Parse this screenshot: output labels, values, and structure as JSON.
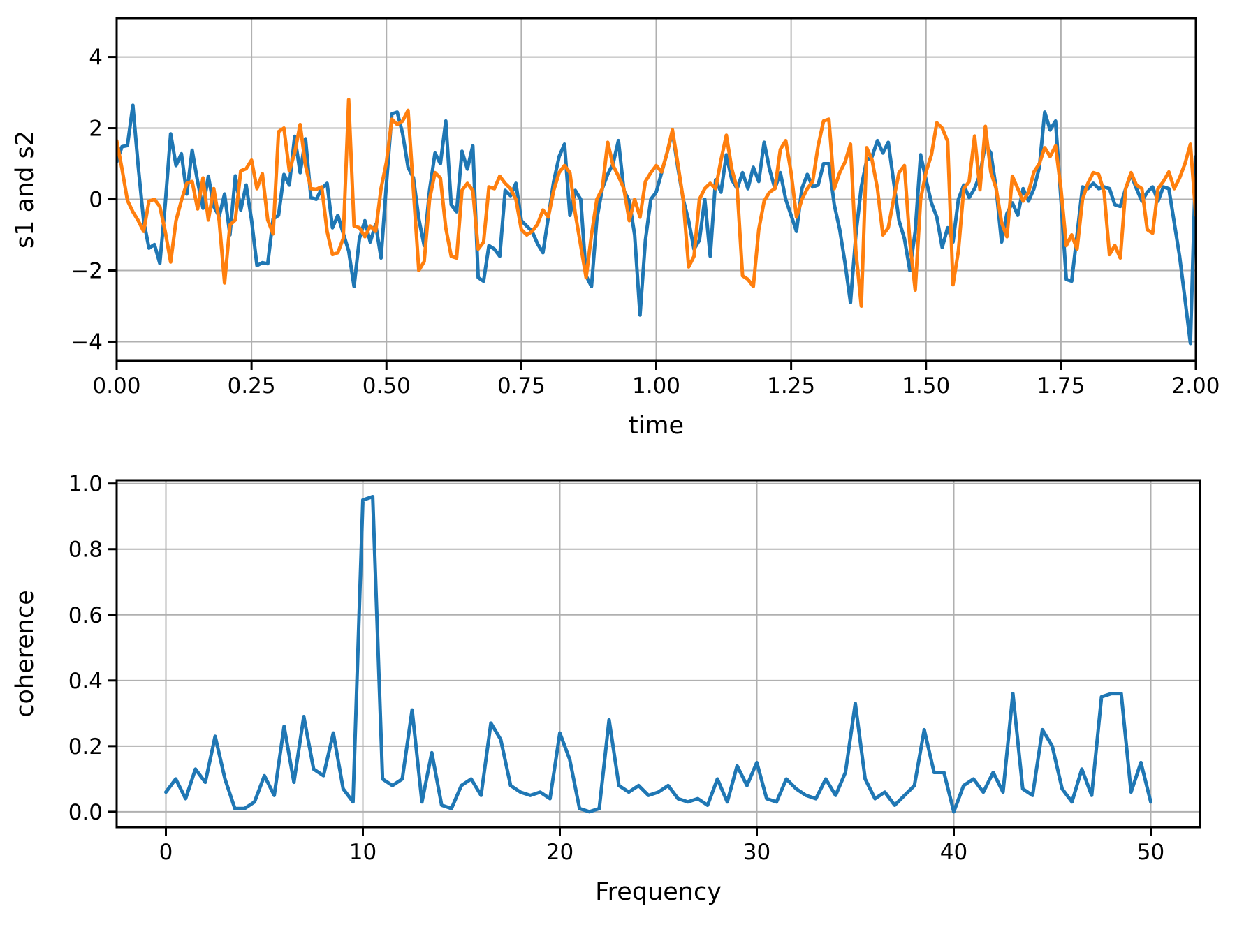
{
  "colors": {
    "s1": "#1f77b4",
    "s2": "#ff7f0e",
    "grid": "#b0b0b0",
    "spine": "#000000",
    "text": "#000000",
    "background": "#ffffff"
  },
  "chart_data": [
    {
      "type": "line",
      "title": "",
      "xlabel": "time",
      "ylabel": "s1 and s2",
      "xlim": [
        0,
        2
      ],
      "ylim": [
        -4.54,
        5.09
      ],
      "grid": true,
      "legend": "none",
      "xticks": {
        "values": [
          0,
          0.25,
          0.5,
          0.75,
          1.0,
          1.25,
          1.5,
          1.75,
          2.0
        ],
        "labels": [
          "0.00",
          "0.25",
          "0.50",
          "0.75",
          "1.00",
          "1.25",
          "1.50",
          "1.75",
          "2.00"
        ]
      },
      "yticks": {
        "values": [
          -4,
          -2,
          0,
          2,
          4
        ],
        "labels": [
          "−4",
          "−2",
          "0",
          "2",
          "4"
        ]
      },
      "x_start": 0,
      "x_step": 0.01,
      "series": [
        {
          "name": "s1",
          "color_key": "s1",
          "values": [
            1.05,
            1.48,
            1.51,
            2.64,
            0.92,
            -0.6,
            -1.37,
            -1.27,
            -1.8,
            -0.15,
            1.84,
            0.95,
            1.28,
            0.15,
            1.38,
            0.5,
            -0.25,
            0.65,
            -0.2,
            -0.48,
            0.15,
            -1.0,
            0.66,
            -0.3,
            0.4,
            -0.58,
            -1.86,
            -1.78,
            -1.81,
            -0.55,
            -0.45,
            0.7,
            0.4,
            1.77,
            0.75,
            1.7,
            0.05,
            0.0,
            0.3,
            0.45,
            -0.8,
            -0.45,
            -0.95,
            -1.45,
            -2.45,
            -1.1,
            -0.6,
            -1.2,
            -0.7,
            -1.65,
            0.45,
            2.4,
            2.45,
            1.85,
            0.9,
            0.6,
            -0.55,
            -1.3,
            0.25,
            1.3,
            1.0,
            2.2,
            -0.15,
            -0.35,
            1.35,
            0.85,
            1.5,
            -2.2,
            -2.3,
            -1.3,
            -1.4,
            -1.6,
            0.25,
            0.1,
            0.45,
            -0.6,
            -0.75,
            -0.9,
            -1.25,
            -1.5,
            -0.5,
            0.5,
            1.2,
            1.55,
            -0.45,
            0.25,
            0.0,
            -2.15,
            -2.45,
            -0.55,
            0.3,
            0.7,
            1.0,
            1.65,
            0.25,
            -0.05,
            -1.0,
            -3.25,
            -1.15,
            0.0,
            0.2,
            0.75,
            1.3,
            1.9,
            0.9,
            0.0,
            -0.6,
            -1.4,
            -1.15,
            0.0,
            -1.6,
            0.55,
            0.2,
            1.25,
            0.55,
            0.3,
            0.75,
            0.3,
            0.9,
            0.5,
            1.6,
            0.85,
            0.3,
            0.75,
            0.0,
            -0.45,
            -0.9,
            0.3,
            0.7,
            0.35,
            0.4,
            1.0,
            1.0,
            -0.15,
            -0.85,
            -1.8,
            -2.9,
            -1.0,
            0.35,
            1.1,
            1.2,
            1.65,
            1.3,
            1.6,
            0.5,
            -0.6,
            -1.1,
            -2.0,
            -0.9,
            1.25,
            0.55,
            -0.1,
            -0.5,
            -1.35,
            -0.8,
            -1.2,
            0.0,
            0.4,
            0.05,
            0.3,
            0.7,
            1.55,
            1.3,
            0.3,
            -1.2,
            -0.4,
            -0.1,
            -0.45,
            0.3,
            -0.05,
            0.3,
            0.9,
            2.45,
            1.95,
            2.2,
            0.0,
            -2.25,
            -2.3,
            -1.0,
            0.35,
            0.3,
            0.45,
            0.3,
            0.35,
            0.3,
            -0.15,
            -0.2,
            0.3,
            0.7,
            0.3,
            -0.05,
            0.2,
            0.35,
            -0.05,
            0.35,
            0.3,
            -0.65,
            -1.6,
            -2.8,
            -4.05,
            1.2
          ]
        },
        {
          "name": "s2",
          "color_key": "s2",
          "values": [
            1.65,
            0.85,
            -0.03,
            -0.35,
            -0.6,
            -0.9,
            -0.05,
            0.0,
            -0.2,
            -0.9,
            -1.76,
            -0.6,
            -0.03,
            0.45,
            0.5,
            -0.27,
            0.6,
            -0.58,
            0.3,
            -0.6,
            -2.35,
            -0.72,
            -0.58,
            0.8,
            0.86,
            1.1,
            0.3,
            0.72,
            -0.58,
            -0.97,
            1.9,
            2.0,
            0.8,
            1.3,
            2.1,
            0.95,
            0.3,
            0.28,
            0.35,
            -0.9,
            -1.55,
            -1.5,
            -1.1,
            2.8,
            -0.75,
            -0.8,
            -1.05,
            -0.75,
            -0.9,
            0.3,
            1.05,
            2.25,
            2.1,
            2.2,
            2.5,
            0.25,
            -2.0,
            -1.75,
            0.0,
            0.75,
            0.6,
            -0.8,
            -1.6,
            -1.65,
            0.25,
            0.45,
            0.25,
            -1.4,
            -1.2,
            0.35,
            0.3,
            0.65,
            0.45,
            0.3,
            0.0,
            -0.85,
            -1.0,
            -0.9,
            -0.7,
            -0.3,
            -0.5,
            0.25,
            0.75,
            0.95,
            0.75,
            -0.4,
            -1.3,
            -2.2,
            -1.0,
            0.0,
            0.3,
            1.6,
            0.95,
            0.65,
            0.3,
            -0.6,
            0.0,
            -0.5,
            0.5,
            0.75,
            0.95,
            0.77,
            1.3,
            1.95,
            1.0,
            0.0,
            -1.9,
            -1.6,
            0.0,
            0.3,
            0.45,
            0.3,
            1.1,
            1.8,
            0.85,
            0.3,
            -2.15,
            -2.25,
            -2.45,
            -0.85,
            -0.05,
            0.2,
            0.3,
            1.4,
            1.65,
            0.75,
            -0.5,
            0.0,
            0.3,
            0.5,
            1.5,
            2.2,
            2.25,
            0.3,
            0.75,
            1.05,
            1.55,
            -1.45,
            -3.0,
            1.45,
            1.1,
            0.3,
            -1.0,
            -0.8,
            0.0,
            0.75,
            0.95,
            -1.2,
            -2.55,
            0.0,
            0.77,
            1.25,
            2.15,
            2.0,
            1.63,
            -2.4,
            -1.45,
            0.3,
            0.5,
            1.78,
            0.27,
            2.05,
            0.77,
            0.3,
            -0.65,
            -1.05,
            0.65,
            0.3,
            -0.05,
            0.2,
            0.77,
            1.0,
            1.45,
            1.2,
            1.5,
            0.3,
            -1.3,
            -1.0,
            -1.4,
            0.0,
            0.45,
            0.75,
            0.7,
            0.2,
            -1.55,
            -1.3,
            -1.65,
            0.3,
            0.75,
            0.4,
            0.3,
            -0.85,
            -0.95,
            0.3,
            0.5,
            0.77,
            0.3,
            0.6,
            1.0,
            1.55,
            -0.45
          ]
        }
      ]
    },
    {
      "type": "line",
      "title": "",
      "xlabel": "Frequency",
      "ylabel": "coherence",
      "xlim": [
        -2.5,
        52.5
      ],
      "ylim": [
        -0.047,
        1.01
      ],
      "grid": true,
      "legend": "none",
      "xticks": {
        "values": [
          0,
          10,
          20,
          30,
          40,
          50
        ],
        "labels": [
          "0",
          "10",
          "20",
          "30",
          "40",
          "50"
        ]
      },
      "yticks": {
        "values": [
          0.0,
          0.2,
          0.4,
          0.6,
          0.8,
          1.0
        ],
        "labels": [
          "0.0",
          "0.2",
          "0.4",
          "0.6",
          "0.8",
          "1.0"
        ]
      },
      "x_start": 0,
      "x_step": 0.5,
      "series": [
        {
          "name": "coherence",
          "color_key": "s1",
          "values": [
            0.06,
            0.1,
            0.04,
            0.13,
            0.09,
            0.23,
            0.1,
            0.01,
            0.01,
            0.03,
            0.11,
            0.05,
            0.26,
            0.09,
            0.29,
            0.13,
            0.11,
            0.24,
            0.07,
            0.03,
            0.95,
            0.96,
            0.1,
            0.08,
            0.1,
            0.31,
            0.03,
            0.18,
            0.02,
            0.01,
            0.08,
            0.1,
            0.05,
            0.27,
            0.22,
            0.08,
            0.06,
            0.05,
            0.06,
            0.04,
            0.24,
            0.16,
            0.01,
            0.0,
            0.01,
            0.28,
            0.08,
            0.06,
            0.08,
            0.05,
            0.06,
            0.08,
            0.04,
            0.03,
            0.04,
            0.02,
            0.1,
            0.03,
            0.14,
            0.08,
            0.15,
            0.04,
            0.03,
            0.1,
            0.07,
            0.05,
            0.04,
            0.1,
            0.05,
            0.12,
            0.33,
            0.1,
            0.04,
            0.06,
            0.02,
            0.05,
            0.08,
            0.25,
            0.12,
            0.12,
            0.0,
            0.08,
            0.1,
            0.06,
            0.12,
            0.06,
            0.36,
            0.07,
            0.05,
            0.25,
            0.2,
            0.07,
            0.03,
            0.13,
            0.05,
            0.35,
            0.36,
            0.36,
            0.06,
            0.15,
            0.03
          ]
        }
      ]
    }
  ]
}
